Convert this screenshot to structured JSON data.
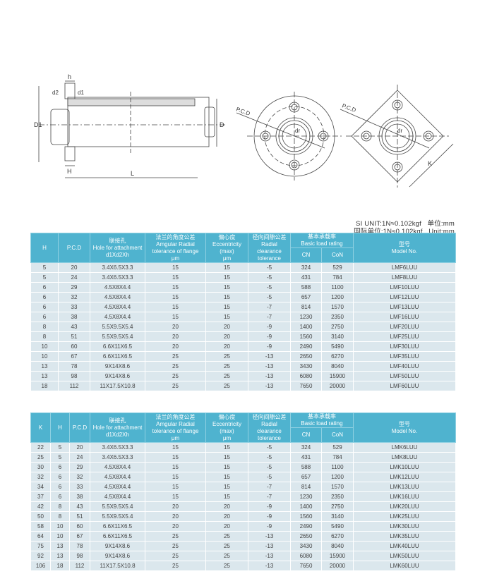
{
  "drawing_labels": {
    "h": "h",
    "d2": "d2",
    "d1": "d1",
    "D1": "D1",
    "D": "D",
    "H": "H",
    "L": "L",
    "pcd": "P.C.D",
    "dr": "dr",
    "K": "K"
  },
  "units": {
    "line1": "SI UNIT:1N≈0.102kgf   单位:mm",
    "line2": "国际单位:1N≈0.102kgf   Unit:mm"
  },
  "colors": {
    "header": "#4fb3cf",
    "row": "#dbe7ed"
  },
  "headers": {
    "K": "K",
    "H": "H",
    "pcd": "P.C.D",
    "hole_cn": "联接孔",
    "hole_en": "Hole for attachment",
    "hole_dim": "d1Xd2Xh",
    "ang_cn": "法兰的角度公差",
    "ang_en1": "Amgular Radial",
    "ang_en2": "tolerance of flange",
    "ang_unit": "μm",
    "ecc_cn": "偏心度",
    "ecc_en": "Eccentricity",
    "ecc_max": "(max)",
    "ecc_unit": "μm",
    "rad_cn": "径向间隙公差",
    "rad_en1": "Radial",
    "rad_en2": "clearance",
    "rad_en3": "tolerance",
    "load_cn": "基本承载率",
    "load_en": "Basic load rating",
    "cn": "CN",
    "con": "CoN",
    "model_cn": "型号",
    "model_en": "Model No."
  },
  "table_lmf": [
    [
      "5",
      "20",
      "3.4X6.5X3.3",
      "15",
      "15",
      "-5",
      "324",
      "529",
      "LMF6LUU"
    ],
    [
      "5",
      "24",
      "3.4X6.5X3.3",
      "15",
      "15",
      "-5",
      "431",
      "784",
      "LMF8LUU"
    ],
    [
      "6",
      "29",
      "4.5X8X4.4",
      "15",
      "15",
      "-5",
      "588",
      "1100",
      "LMF10LUU"
    ],
    [
      "6",
      "32",
      "4.5X8X4.4",
      "15",
      "15",
      "-5",
      "657",
      "1200",
      "LMF12LUU"
    ],
    [
      "6",
      "33",
      "4.5X8X4.4",
      "15",
      "15",
      "-7",
      "814",
      "1570",
      "LMF13LUU"
    ],
    [
      "6",
      "38",
      "4.5X8X4.4",
      "15",
      "15",
      "-7",
      "1230",
      "2350",
      "LMF16LUU"
    ],
    [
      "8",
      "43",
      "5.5X9.5X5.4",
      "20",
      "20",
      "-9",
      "1400",
      "2750",
      "LMF20LUU"
    ],
    [
      "8",
      "51",
      "5.5X9.5X5.4",
      "20",
      "20",
      "-9",
      "1560",
      "3140",
      "LMF25LUU"
    ],
    [
      "10",
      "60",
      "6.6X11X6.5",
      "20",
      "20",
      "-9",
      "2490",
      "5490",
      "LMF30LUU"
    ],
    [
      "10",
      "67",
      "6.6X11X6.5",
      "25",
      "25",
      "-13",
      "2650",
      "6270",
      "LMF35LUU"
    ],
    [
      "13",
      "78",
      "9X14X8.6",
      "25",
      "25",
      "-13",
      "3430",
      "8040",
      "LMF40LUU"
    ],
    [
      "13",
      "98",
      "9X14X8.6",
      "25",
      "25",
      "-13",
      "6080",
      "15900",
      "LMF50LUU"
    ],
    [
      "18",
      "112",
      "11X17.5X10.8",
      "25",
      "25",
      "-13",
      "7650",
      "20000",
      "LMF60LUU"
    ]
  ],
  "table_lmk": [
    [
      "22",
      "5",
      "20",
      "3.4X6.5X3.3",
      "15",
      "15",
      "-5",
      "324",
      "529",
      "LMK6LUU"
    ],
    [
      "25",
      "5",
      "24",
      "3.4X6.5X3.3",
      "15",
      "15",
      "-5",
      "431",
      "784",
      "LMK8LUU"
    ],
    [
      "30",
      "6",
      "29",
      "4.5X8X4.4",
      "15",
      "15",
      "-5",
      "588",
      "1100",
      "LMK10LUU"
    ],
    [
      "32",
      "6",
      "32",
      "4.5X8X4.4",
      "15",
      "15",
      "-5",
      "657",
      "1200",
      "LMK12LUU"
    ],
    [
      "34",
      "6",
      "33",
      "4.5X8X4.4",
      "15",
      "15",
      "-7",
      "814",
      "1570",
      "LMK13LUU"
    ],
    [
      "37",
      "6",
      "38",
      "4.5X8X4.4",
      "15",
      "15",
      "-7",
      "1230",
      "2350",
      "LMK16LUU"
    ],
    [
      "42",
      "8",
      "43",
      "5.5X9.5X5.4",
      "20",
      "20",
      "-9",
      "1400",
      "2750",
      "LMK20LUU"
    ],
    [
      "50",
      "8",
      "51",
      "5.5X9.5X5.4",
      "20",
      "20",
      "-9",
      "1560",
      "3140",
      "LMK25LUU"
    ],
    [
      "58",
      "10",
      "60",
      "6.6X11X6.5",
      "20",
      "20",
      "-9",
      "2490",
      "5490",
      "LMK30LUU"
    ],
    [
      "64",
      "10",
      "67",
      "6.6X11X6.5",
      "25",
      "25",
      "-13",
      "2650",
      "6270",
      "LMK35LUU"
    ],
    [
      "75",
      "13",
      "78",
      "9X14X8.6",
      "25",
      "25",
      "-13",
      "3430",
      "8040",
      "LMK40LUU"
    ],
    [
      "92",
      "13",
      "98",
      "9X14X8.6",
      "25",
      "25",
      "-13",
      "6080",
      "15900",
      "LMK50LUU"
    ],
    [
      "106",
      "18",
      "112",
      "11X17.5X10.8",
      "25",
      "25",
      "-13",
      "7650",
      "20000",
      "LMK60LUU"
    ]
  ]
}
